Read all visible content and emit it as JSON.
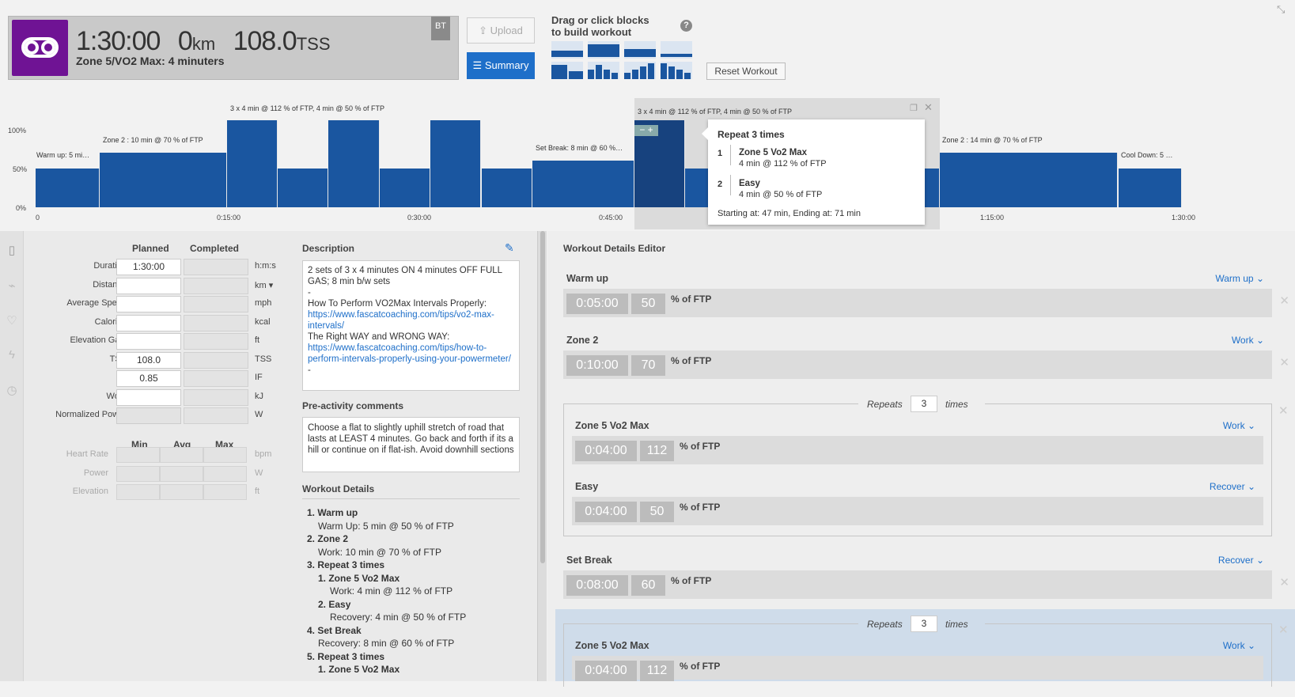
{
  "header": {
    "duration": "1:30:00",
    "distance": "0",
    "distance_unit": "km",
    "tss": "108.0",
    "tss_unit": "TSS",
    "zone_title": "Zone 5/VO2 Max: 4 minuters",
    "badge": "BT",
    "upload_label": "Upload",
    "summary_label": "Summary",
    "drag_hint_1": "Drag or click blocks",
    "drag_hint_2": "to build workout",
    "help": "?",
    "reset_label": "Reset Workout"
  },
  "chart": {
    "y_ticks": [
      "100%",
      "50%",
      "0%"
    ],
    "x_ticks": [
      "0",
      "0:15:00",
      "0:30:00",
      "0:45:00",
      "1:15:00",
      "1:30:00"
    ],
    "labels": {
      "warmup": "Warm up: 5 mi…",
      "zone2": "Zone 2 : 10 min @ 70 % of FTP",
      "repeat1": "3 x 4 min @ 112 % of FTP, 4 min @ 50 % of FTP",
      "setbreak": "Set Break: 8 min @ 60 %…",
      "repeat2": "3 x 4 min @ 112 % of FTP, 4 min @ 50 % of FTP",
      "zone2b": "Zone 2 : 14 min @ 70 % of FTP",
      "cooldown": "Cool Down: 5 …"
    },
    "popup": {
      "title": "Repeat 3 times",
      "items": [
        {
          "num": "1",
          "name": "Zone 5 Vo2 Max",
          "detail": "4 min @ 112 % of FTP"
        },
        {
          "num": "2",
          "name": "Easy",
          "detail": "4 min @ 50 % of FTP"
        }
      ],
      "footer": "Starting at: 47 min, Ending at: 71 min"
    }
  },
  "chart_data": {
    "type": "bar",
    "x_unit": "minutes",
    "y_unit": "% of FTP",
    "ylim": [
      0,
      112
    ],
    "segments": [
      {
        "start": 0,
        "end": 5,
        "value": 50
      },
      {
        "start": 5,
        "end": 15,
        "value": 70
      },
      {
        "start": 15,
        "end": 19,
        "value": 112
      },
      {
        "start": 19,
        "end": 23,
        "value": 50
      },
      {
        "start": 23,
        "end": 27,
        "value": 112
      },
      {
        "start": 27,
        "end": 31,
        "value": 50
      },
      {
        "start": 31,
        "end": 35,
        "value": 112
      },
      {
        "start": 35,
        "end": 39,
        "value": 50
      },
      {
        "start": 39,
        "end": 47,
        "value": 60
      },
      {
        "start": 47,
        "end": 51,
        "value": 112
      },
      {
        "start": 51,
        "end": 55,
        "value": 50
      },
      {
        "start": 55,
        "end": 59,
        "value": 112
      },
      {
        "start": 59,
        "end": 63,
        "value": 50
      },
      {
        "start": 63,
        "end": 67,
        "value": 112
      },
      {
        "start": 67,
        "end": 71,
        "value": 50
      },
      {
        "start": 71,
        "end": 85,
        "value": 70
      },
      {
        "start": 85,
        "end": 90,
        "value": 50
      }
    ]
  },
  "fields": {
    "col_planned": "Planned",
    "col_completed": "Completed",
    "rows": [
      {
        "label": "Duration",
        "planned": "1:30:00",
        "unit": "h:m:s"
      },
      {
        "label": "Distance",
        "planned": "",
        "unit": "km"
      },
      {
        "label": "Average Speed",
        "planned": "",
        "unit": "mph"
      },
      {
        "label": "Calories",
        "planned": "",
        "unit": "kcal"
      },
      {
        "label": "Elevation Gain",
        "planned": "",
        "unit": "ft"
      },
      {
        "label": "TSS",
        "planned": "108.0",
        "unit": "TSS"
      },
      {
        "label": "IF",
        "planned": "0.85",
        "unit": "IF"
      },
      {
        "label": "Work",
        "planned": "",
        "unit": "kJ"
      },
      {
        "label": "Normalized Power",
        "planned": "",
        "unit": "W"
      }
    ],
    "col_min": "Min",
    "col_avg": "Avg",
    "col_max": "Max",
    "mrows": [
      {
        "label": "Heart Rate",
        "unit": "bpm"
      },
      {
        "label": "Power",
        "unit": "W"
      },
      {
        "label": "Elevation",
        "unit": "ft"
      }
    ]
  },
  "description": {
    "title": "Description",
    "line1": "2 sets of 3 x 4 minutes ON 4 minutes OFF FULL GAS; 8 min b/w sets",
    "dash1": "-",
    "line2": "How To Perform VO2Max Intervals Properly:",
    "link1": "https://www.fascatcoaching.com/tips/vo2-max-intervals/",
    "line3": "The Right WAY and WRONG WAY:",
    "link2": "https://www.fascatcoaching.com/tips/how-to-perform-intervals-properly-using-your-powermeter/",
    "dash2": "-"
  },
  "pre_activity": {
    "title": "Pre-activity comments",
    "text": "Choose a flat to slightly uphill stretch of road that lasts at LEAST 4 minutes. Go back and forth if its a hill or continue on if flat-ish. Avoid downhill sections"
  },
  "workout_details": {
    "title": "Workout Details",
    "i1": "1. Warm up",
    "i1d": "Warm Up: 5 min @ 50 % of FTP",
    "i2": "2. Zone 2",
    "i2d": "Work: 10 min @ 70 % of FTP",
    "i3": "3. Repeat 3 times",
    "i3a": "1. Zone 5 Vo2 Max",
    "i3ad": "Work: 4 min @ 112 % of FTP",
    "i3b": "2. Easy",
    "i3bd": "Recovery: 4 min @ 50 % of FTP",
    "i4": "4. Set Break",
    "i4d": "Recovery: 8 min @ 60 % of FTP",
    "i5": "5. Repeat 3 times",
    "i5a": "1. Zone 5 Vo2 Max"
  },
  "editor": {
    "title": "Workout Details Editor",
    "pct_unit": "% of FTP",
    "repeats_label": "Repeats",
    "times_label": "times",
    "steps": [
      {
        "name": "Warm up",
        "type": "Warm up",
        "time": "0:05:00",
        "pct": "50"
      },
      {
        "name": "Zone 2",
        "type": "Work",
        "time": "0:10:00",
        "pct": "70"
      },
      {
        "name": "Zone 5 Vo2 Max",
        "type": "Work",
        "time": "0:04:00",
        "pct": "112"
      },
      {
        "name": "Easy",
        "type": "Recover",
        "time": "0:04:00",
        "pct": "50"
      },
      {
        "name": "Set Break",
        "type": "Recover",
        "time": "0:08:00",
        "pct": "60"
      },
      {
        "name": "Zone 5 Vo2 Max",
        "type": "Work",
        "time": "0:04:00",
        "pct": "112"
      }
    ],
    "repeat_count_1": "3",
    "repeat_count_2": "3"
  },
  "colors": {
    "accent": "#1e6fc9",
    "bar": "#1a56a0",
    "brand": "#6f1394"
  }
}
